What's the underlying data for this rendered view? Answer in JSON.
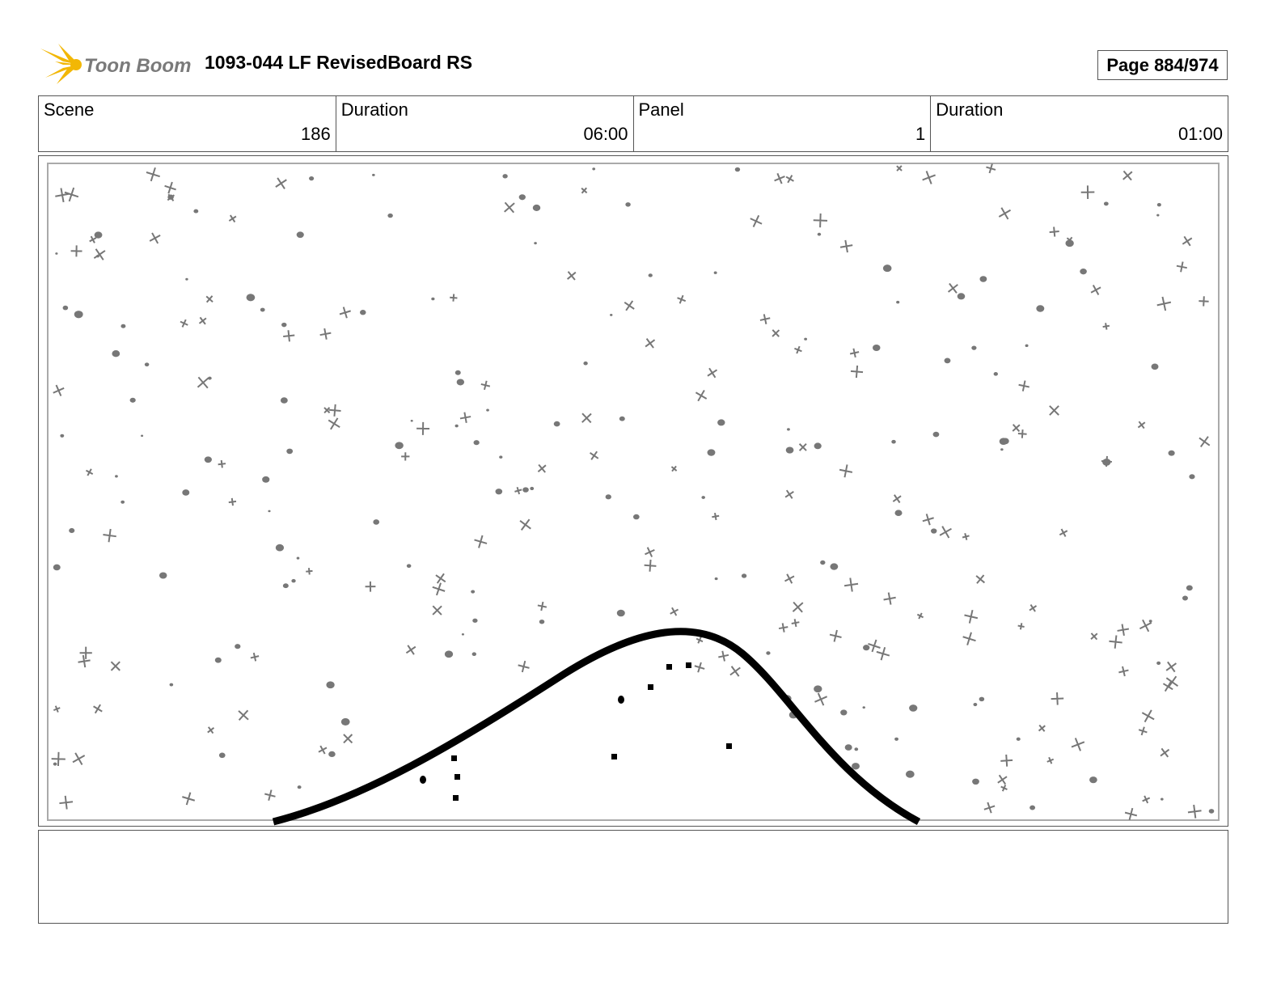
{
  "header": {
    "logo": "Toon Boom",
    "title": "1093-044 LF RevisedBoard RS",
    "page": "Page 884/974"
  },
  "info": [
    {
      "label": "Scene",
      "value": "186"
    },
    {
      "label": "Duration",
      "value": "06:00"
    },
    {
      "label": "Panel",
      "value": "1"
    },
    {
      "label": "Duration",
      "value": "01:00"
    }
  ]
}
